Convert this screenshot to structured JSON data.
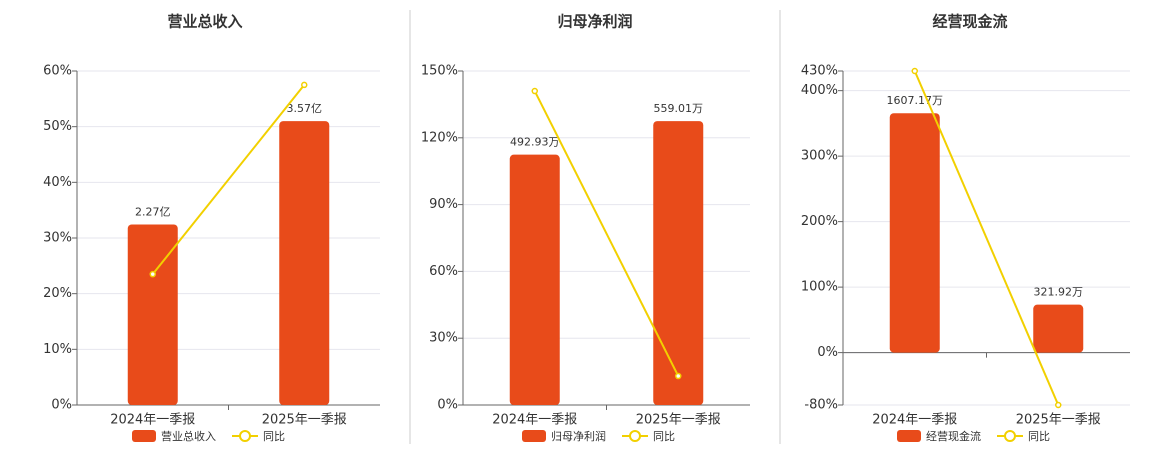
{
  "chart_data": [
    {
      "type": "bar",
      "title": "营业总收入",
      "categories": [
        "2024年一季报",
        "2025年一季报"
      ],
      "series": [
        {
          "name": "营业总收入",
          "color": "#e84b1a",
          "values": [
            2.27,
            3.57
          ],
          "value_labels": [
            "2.27亿",
            "3.57亿"
          ]
        },
        {
          "name": "同比",
          "color": "#f2d000",
          "type": "line",
          "values": [
            23.5,
            57.5
          ]
        }
      ],
      "ylim": [
        0,
        60
      ],
      "yticks": [
        {
          "value": 0,
          "label": "0%"
        },
        {
          "value": 10,
          "label": "10%"
        },
        {
          "value": 20,
          "label": "20%"
        },
        {
          "value": 30,
          "label": "30%"
        },
        {
          "value": 40,
          "label": "40%"
        },
        {
          "value": 50,
          "label": "50%"
        },
        {
          "value": 60,
          "label": "60%"
        }
      ],
      "grid": true
    },
    {
      "type": "bar",
      "title": "归母净利润",
      "categories": [
        "2024年一季报",
        "2025年一季报"
      ],
      "series": [
        {
          "name": "归母净利润",
          "color": "#e84b1a",
          "values": [
            492.93,
            559.01
          ],
          "value_labels": [
            "492.93万",
            "559.01万"
          ]
        },
        {
          "name": "同比",
          "color": "#f2d000",
          "type": "line",
          "values": [
            141,
            13
          ]
        }
      ],
      "ylim": [
        0,
        150
      ],
      "yticks": [
        {
          "value": 0,
          "label": "0%"
        },
        {
          "value": 30,
          "label": "30%"
        },
        {
          "value": 60,
          "label": "60%"
        },
        {
          "value": 90,
          "label": "90%"
        },
        {
          "value": 120,
          "label": "120%"
        },
        {
          "value": 150,
          "label": "150%"
        }
      ],
      "grid": true
    },
    {
      "type": "bar",
      "title": "经营现金流",
      "categories": [
        "2024年一季报",
        "2025年一季报"
      ],
      "series": [
        {
          "name": "经营现金流",
          "color": "#e84b1a",
          "values": [
            1607.17,
            321.92
          ],
          "value_labels": [
            "1607.17万",
            "321.92万"
          ]
        },
        {
          "name": "同比",
          "color": "#f2d000",
          "type": "line",
          "values": [
            430,
            -80
          ]
        }
      ],
      "ylim": [
        -80,
        430
      ],
      "yticks": [
        {
          "value": -80,
          "label": "-80%"
        },
        {
          "value": 0,
          "label": "0%"
        },
        {
          "value": 100,
          "label": "100%"
        },
        {
          "value": 200,
          "label": "200%"
        },
        {
          "value": 300,
          "label": "300%"
        },
        {
          "value": 400,
          "label": "400%"
        },
        {
          "value": 430,
          "label": "430%"
        }
      ],
      "grid": true
    }
  ]
}
